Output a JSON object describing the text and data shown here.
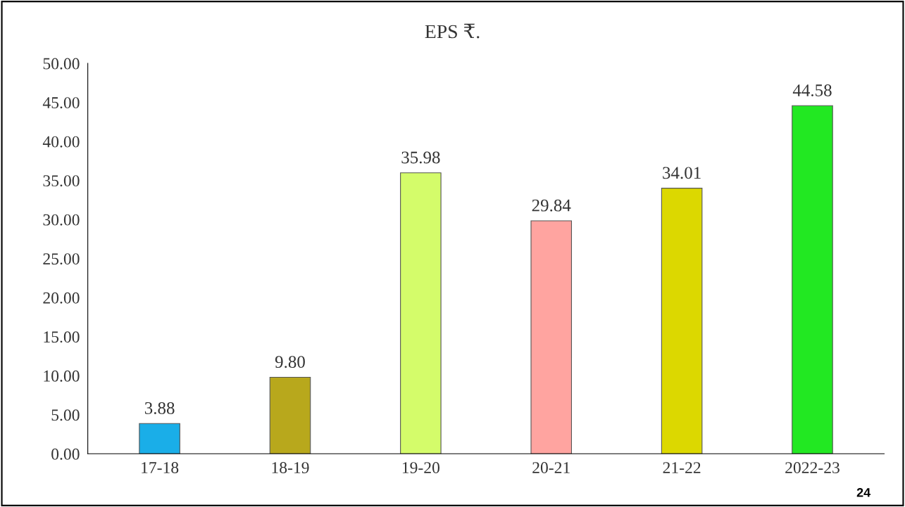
{
  "chart_data": {
    "type": "bar",
    "title": "EPS ₹.",
    "categories": [
      "17-18",
      "18-19",
      "19-20",
      "20-21",
      "21-22",
      "2022-23"
    ],
    "values": [
      3.88,
      9.8,
      35.98,
      29.84,
      34.01,
      44.58
    ],
    "value_labels": [
      "3.88",
      "9.80",
      "35.98",
      "29.84",
      "34.01",
      "44.58"
    ],
    "colors": [
      "#1aaee8",
      "#b8a81c",
      "#d4fc6a",
      "#ffa4a0",
      "#dcd800",
      "#22e822"
    ],
    "ylim": [
      0,
      50
    ],
    "yticks": [
      {
        "value": 0,
        "label": "0.00"
      },
      {
        "value": 5,
        "label": "5.00"
      },
      {
        "value": 10,
        "label": "10.00"
      },
      {
        "value": 15,
        "label": "15.00"
      },
      {
        "value": 20,
        "label": "20.00"
      },
      {
        "value": 25,
        "label": "25.00"
      },
      {
        "value": 30,
        "label": "30.00"
      },
      {
        "value": 35,
        "label": "35.00"
      },
      {
        "value": 40,
        "label": "40.00"
      },
      {
        "value": 45,
        "label": "45.00"
      },
      {
        "value": 50,
        "label": "50.00"
      }
    ],
    "grid": false,
    "legend": false,
    "annotations": [
      "24"
    ]
  }
}
